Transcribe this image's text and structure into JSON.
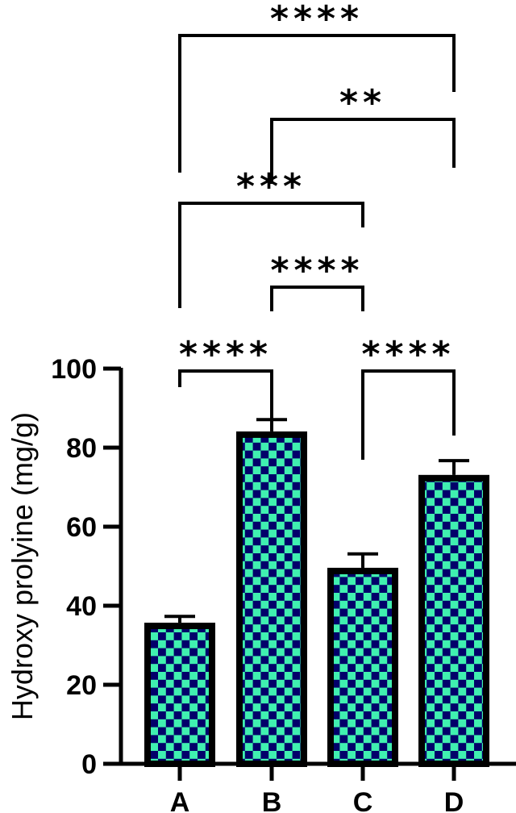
{
  "chart_data": {
    "type": "bar",
    "title": "",
    "xlabel": "",
    "ylabel": "Hydroxy prolyine (mg/g)",
    "ylim": [
      0,
      100
    ],
    "yticks": [
      0,
      20,
      40,
      60,
      80,
      100
    ],
    "grid": false,
    "categories": [
      "A",
      "B",
      "C",
      "D"
    ],
    "values": [
      35.7,
      84.1,
      49.6,
      73.1
    ],
    "error_upper": [
      1.6,
      3.0,
      3.5,
      3.6
    ],
    "bar_fill": "checkerboard",
    "colors": {
      "check_light": "#40F0B0",
      "check_dark": "#03006A",
      "outline": "#000000"
    },
    "significance": [
      {
        "pair": [
          "A",
          "B"
        ],
        "label": "****"
      },
      {
        "pair": [
          "C",
          "D"
        ],
        "label": "****"
      },
      {
        "pair": [
          "B",
          "C"
        ],
        "label": "****"
      },
      {
        "pair": [
          "A",
          "C"
        ],
        "label": "***"
      },
      {
        "pair": [
          "B",
          "D"
        ],
        "label": "**"
      },
      {
        "pair": [
          "A",
          "D"
        ],
        "label": "****"
      }
    ]
  }
}
